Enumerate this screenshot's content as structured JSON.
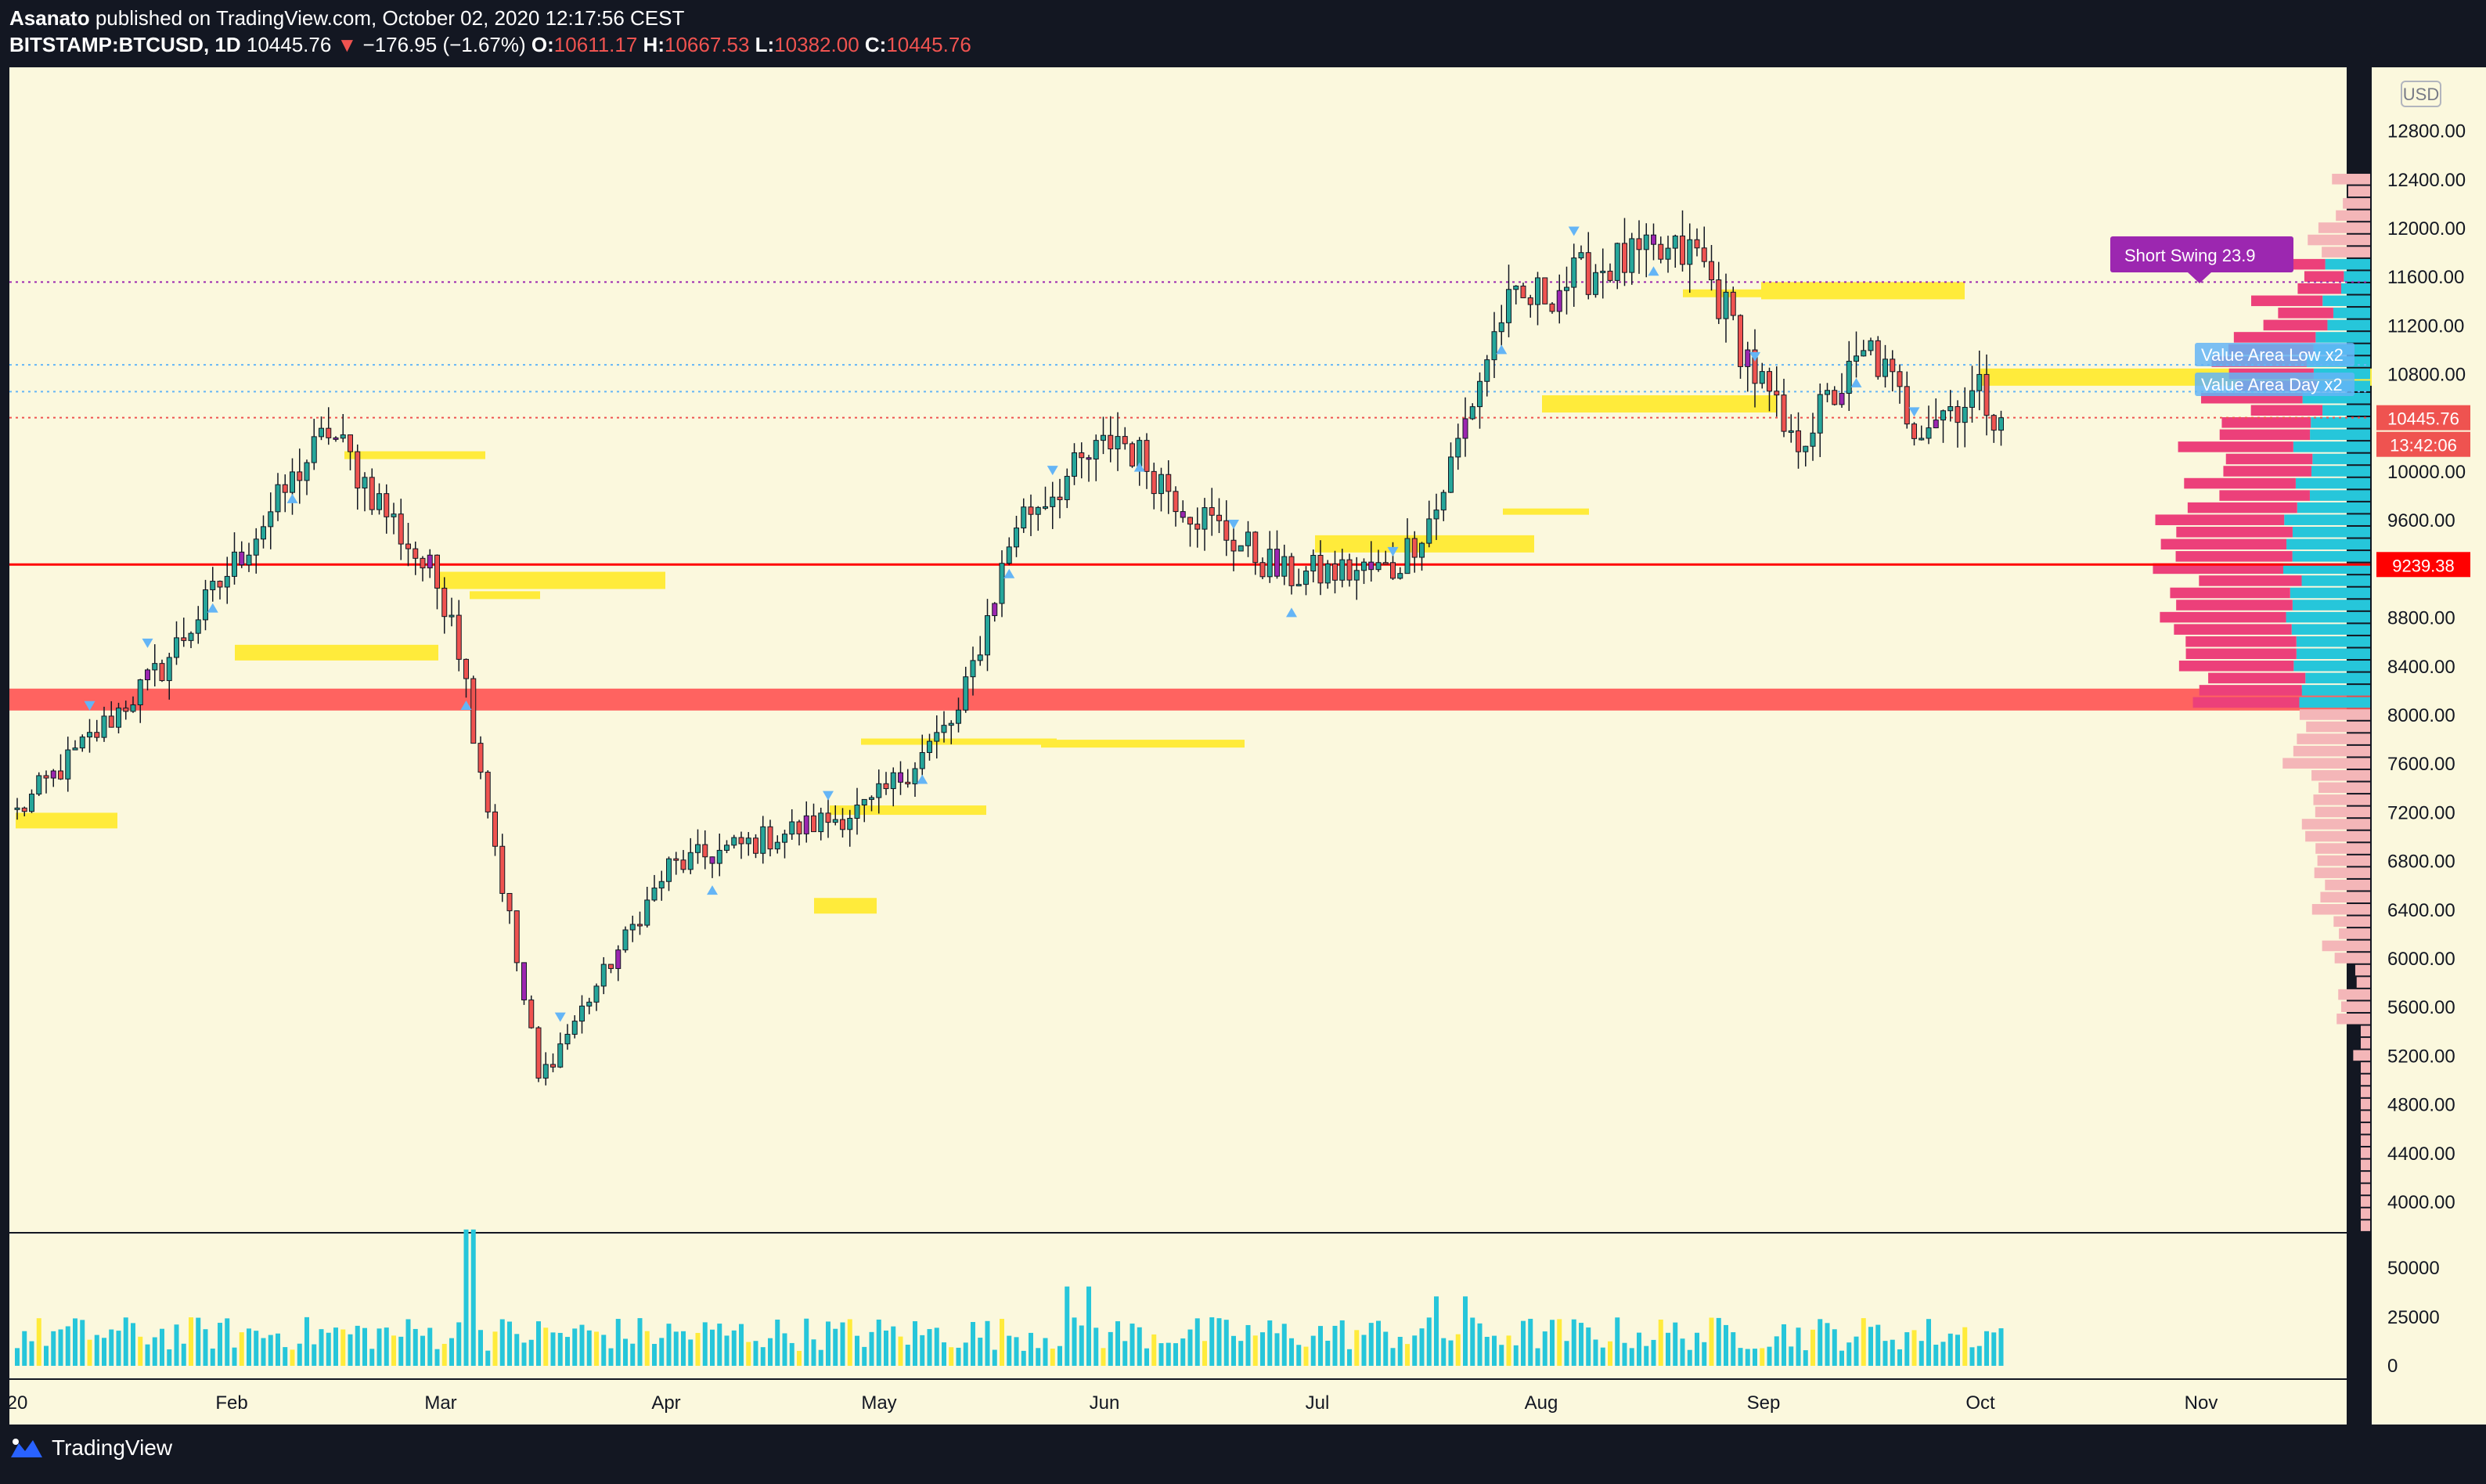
{
  "header": {
    "author": "Asanato",
    "published_text": "published on TradingView.com, October 02, 2020 12:17:56 CEST",
    "symbol": "BITSTAMP:BTCUSD, 1D",
    "last": "10445.76",
    "change_arrow": "▼",
    "change": "−176.95 (−1.67%)",
    "o_label": "O:",
    "o_value": "10611.17",
    "h_label": "H:",
    "h_value": "10667.53",
    "l_label": "L:",
    "l_value": "10382.00",
    "c_label": "C:",
    "c_value": "10445.76"
  },
  "footer": {
    "brand": "TradingView"
  },
  "labels": {
    "currency": "USD",
    "short_swing": "Short Swing  23.9",
    "value_area_1": "Value Area  Low x2",
    "value_area_2": "Value Area  Day x2",
    "price_last": "10445.76",
    "countdown": "13:42:06",
    "price_line": "9239.38"
  },
  "colors": {
    "background": "#fbf8dd",
    "up": "#26a69a",
    "down": "#ef5350",
    "highlight_purple": "#9c27b0",
    "zones_yellow": "#ffeb3b",
    "zone_red": "#ff5252",
    "volume_cyan": "#26c6da",
    "profile_pink": "#ec407a",
    "profile_light": "#f4b6b8"
  },
  "chart_data": {
    "type": "candlestick",
    "symbol": "BITSTAMP:BTCUSD",
    "interval": "1D",
    "y_ticks": [
      12800,
      12400,
      12000,
      11600,
      11200,
      10800,
      10400,
      10000,
      9600,
      9200,
      8800,
      8400,
      8000,
      7600,
      7200,
      6800,
      6400,
      6000,
      5600,
      5200,
      4800,
      4400,
      4000
    ],
    "y_tick_labels": [
      "12800.00",
      "12400.00",
      "12000.00",
      "11600.00",
      "11200.00",
      "10800.00",
      "",
      "10000.00",
      "9600.00",
      "",
      "8800.00",
      "8400.00",
      "8000.00",
      "7600.00",
      "7200.00",
      "6800.00",
      "6400.00",
      "6000.00",
      "5600.00",
      "5200.00",
      "4800.00",
      "4400.00",
      "4000.00"
    ],
    "x_labels": [
      "20",
      "Feb",
      "Mar",
      "Apr",
      "May",
      "Jun",
      "Jul",
      "Aug",
      "Sep",
      "Oct",
      "Nov"
    ],
    "volume_ticks": [
      "50000",
      "25000",
      "0"
    ],
    "horizontal_lines": [
      {
        "price": 11560,
        "style": "dotted",
        "color": "#9c27b0"
      },
      {
        "price": 10880,
        "style": "dotted",
        "color": "#64b5f6"
      },
      {
        "price": 10660,
        "style": "dotted",
        "color": "#64b5f6"
      },
      {
        "price": 10445.76,
        "style": "dotted",
        "color": "#ef5350"
      },
      {
        "price": 9239.38,
        "style": "solid",
        "color": "#ff0000"
      }
    ],
    "support_zone": {
      "low": 8040,
      "high": 8220,
      "color": "#ff5252"
    },
    "anchors": [
      {
        "day": 0,
        "price": 7200
      },
      {
        "day": 20,
        "price": 8400
      },
      {
        "day": 43,
        "price": 10350
      },
      {
        "day": 60,
        "price": 8900
      },
      {
        "day": 72,
        "price": 5000
      },
      {
        "day": 90,
        "price": 6750
      },
      {
        "day": 118,
        "price": 7250
      },
      {
        "day": 130,
        "price": 8000
      },
      {
        "day": 138,
        "price": 9600
      },
      {
        "day": 152,
        "price": 10300
      },
      {
        "day": 162,
        "price": 9700
      },
      {
        "day": 175,
        "price": 9150
      },
      {
        "day": 190,
        "price": 9200
      },
      {
        "day": 196,
        "price": 9700
      },
      {
        "day": 205,
        "price": 11300
      },
      {
        "day": 219,
        "price": 11700
      },
      {
        "day": 232,
        "price": 11800
      },
      {
        "day": 245,
        "price": 10200
      },
      {
        "day": 256,
        "price": 11000
      },
      {
        "day": 262,
        "price": 10400
      },
      {
        "day": 271,
        "price": 10650
      },
      {
        "day": 274,
        "price": 10445.76
      }
    ]
  }
}
